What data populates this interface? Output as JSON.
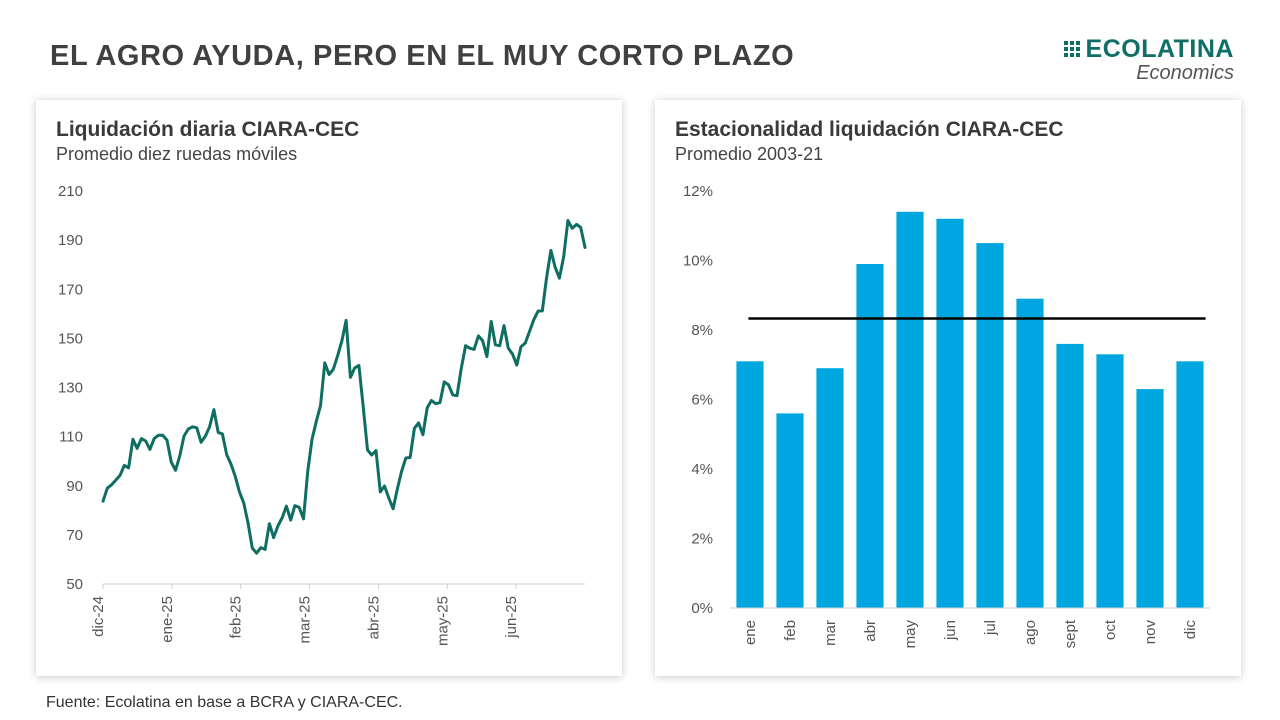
{
  "header": {
    "title": "EL AGRO AYUDA, PERO EN EL MUY CORTO PLAZO",
    "logo_name": "ECOLATINA",
    "logo_sub": "Economics"
  },
  "left_card": {
    "title": "Liquidación diaria CIARA-CEC",
    "subtitle": "Promedio diez ruedas móviles"
  },
  "right_card": {
    "title": "Estacionalidad liquidación CIARA-CEC",
    "subtitle": "Promedio 2003-21"
  },
  "source": "Fuente: Ecolatina en base a BCRA y CIARA-CEC.",
  "chart_data": [
    {
      "type": "line",
      "title": "Liquidación diaria CIARA-CEC",
      "subtitle": "Promedio diez ruedas móviles",
      "color": "#0f6e63",
      "ylim": [
        50,
        210
      ],
      "yticks": [
        "210",
        "190",
        "170",
        "150",
        "130",
        "110",
        "90",
        "70",
        "50"
      ],
      "ytick_values": [
        210,
        190,
        170,
        150,
        130,
        110,
        90,
        70,
        50
      ],
      "xtick_labels": [
        "dic-24",
        "ene-25",
        "feb-25",
        "mar-25",
        "abr-25",
        "may-25",
        "jun-25"
      ],
      "grid": false,
      "series": [
        {
          "values": [
            83.7,
            89.0,
            90.4,
            92.3,
            94.3,
            98.3,
            97.3,
            108.9,
            105.2,
            109.2,
            108.2,
            104.8,
            109.2,
            110.6,
            110.6,
            108.6,
            99.7,
            96.3,
            102.2,
            110.2,
            113.1,
            114.0,
            113.6,
            107.7,
            110.2,
            114.0,
            121.0,
            111.7,
            111.1,
            102.7,
            98.8,
            93.9,
            87.4,
            82.9,
            74.9,
            64.6,
            62.6,
            64.8,
            64.1,
            74.6,
            68.9,
            73.6,
            77.0,
            81.7,
            76.0,
            81.9,
            81.2,
            76.5,
            95.7,
            108.9,
            116.2,
            122.6,
            140.0,
            135.3,
            137.4,
            142.9,
            149.0,
            157.3,
            134.1,
            138.0,
            139.0,
            122.2,
            104.6,
            102.5,
            104.3,
            87.5,
            89.9,
            85.0,
            80.6,
            88.6,
            95.9,
            101.3,
            101.5,
            113.4,
            115.6,
            110.8,
            121.7,
            124.7,
            123.4,
            123.9,
            132.3,
            131.1,
            127.0,
            126.7,
            137.8,
            147.0,
            146.0,
            145.5,
            151.0,
            149.1,
            142.6,
            156.9,
            147.4,
            147.0,
            155.2,
            146.1,
            143.6,
            139.1,
            146.6,
            148.1,
            152.8,
            157.6,
            161.1,
            161.2,
            174.8,
            185.8,
            179.0,
            174.5,
            183.3,
            198.0,
            194.8,
            196.4,
            195.2,
            187.0
          ]
        }
      ]
    },
    {
      "type": "bar",
      "title": "Estacionalidad liquidación CIARA-CEC",
      "subtitle": "Promedio 2003-21",
      "categories": [
        "ene",
        "feb",
        "mar",
        "abr",
        "may",
        "jun",
        "jul",
        "ago",
        "sept",
        "oct",
        "nov",
        "dic"
      ],
      "values": [
        7.1,
        5.6,
        6.9,
        9.9,
        11.4,
        11.2,
        10.5,
        8.9,
        7.6,
        7.3,
        6.3,
        7.1
      ],
      "reference_line": 8.33,
      "bar_color": "#00a6df",
      "line_color": "#000000",
      "ylim": [
        0,
        12
      ],
      "yticks": [
        "12%",
        "10%",
        "8%",
        "6%",
        "4%",
        "2%",
        "0%"
      ],
      "ytick_values": [
        12,
        10,
        8,
        6,
        4,
        2,
        0
      ],
      "grid": false
    }
  ]
}
